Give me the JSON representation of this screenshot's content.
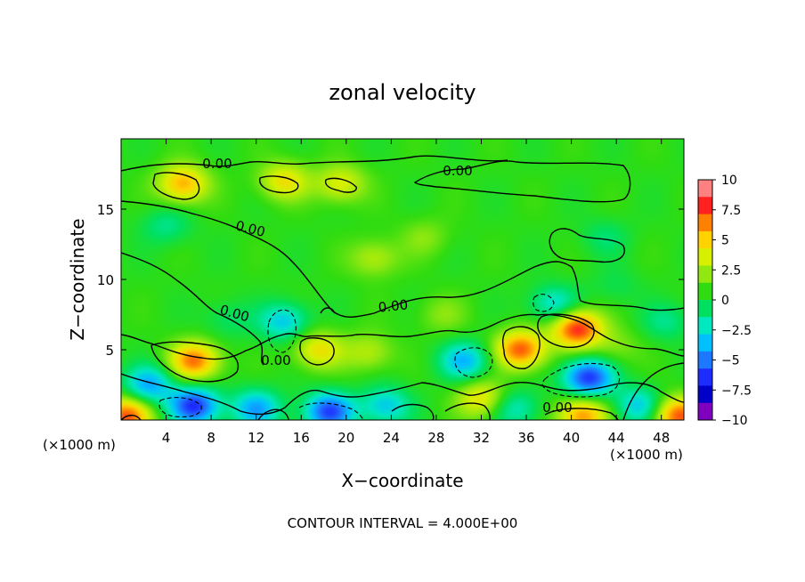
{
  "chart_data": {
    "type": "heatmap",
    "title": "zonal velocity",
    "xlabel": "X−coordinate",
    "ylabel": "Z−coordinate",
    "x_unit_left": "(×1000 m)",
    "x_unit_right": "(×1000 m)",
    "xlim": [
      0,
      50
    ],
    "ylim": [
      0,
      20
    ],
    "x_ticks": [
      4,
      8,
      12,
      16,
      20,
      24,
      28,
      32,
      36,
      40,
      44,
      48
    ],
    "y_ticks": [
      5,
      10,
      15
    ],
    "colorbar": {
      "ticks": [
        "10",
        "7.5",
        "5",
        "2.5",
        "0",
        "−2.5",
        "−5",
        "−7.5",
        "−10"
      ],
      "range": [
        -10,
        10
      ],
      "colors": [
        "#ff8080",
        "#ff2020",
        "#ff7f00",
        "#ffd200",
        "#d7f000",
        "#90e810",
        "#30dc10",
        "#00e060",
        "#00e8c0",
        "#00c0ff",
        "#1e78ff",
        "#1e2dff",
        "#0000c8",
        "#8000c0"
      ]
    },
    "contour_labels": [
      "0.00",
      "0.00",
      "0.00",
      "0.00",
      "0.00",
      "0.00",
      "0.00"
    ],
    "contour_interval_text": "CONTOUR INTERVAL = 4.000E+00",
    "features": [
      {
        "x": 5.5,
        "z": 16.8,
        "value": 5.5
      },
      {
        "x": 14.5,
        "z": 17.0,
        "value": 4.0
      },
      {
        "x": 19.5,
        "z": 16.8,
        "value": 3.5
      },
      {
        "x": 22.5,
        "z": 11.5,
        "value": 2.5
      },
      {
        "x": 27.0,
        "z": 13.0,
        "value": 1.5
      },
      {
        "x": 4.0,
        "z": 13.8,
        "value": -2.0
      },
      {
        "x": 6.5,
        "z": 4.2,
        "value": 6.5
      },
      {
        "x": 9.5,
        "z": 7.2,
        "value": -1.5
      },
      {
        "x": 14.5,
        "z": 7.0,
        "value": -4.0
      },
      {
        "x": 17.5,
        "z": 5.0,
        "value": 4.0
      },
      {
        "x": 6.5,
        "z": 1.0,
        "value": -7.5
      },
      {
        "x": 2.5,
        "z": 2.5,
        "value": -5.0
      },
      {
        "x": 18.5,
        "z": 0.6,
        "value": -7.0
      },
      {
        "x": 23.5,
        "z": 1.0,
        "value": -4.0
      },
      {
        "x": 22.0,
        "z": 4.8,
        "value": 2.5
      },
      {
        "x": 30.5,
        "z": 4.2,
        "value": -4.5
      },
      {
        "x": 32.0,
        "z": 1.5,
        "value": 4.0
      },
      {
        "x": 35.5,
        "z": 5.0,
        "value": 7.0
      },
      {
        "x": 40.5,
        "z": 6.5,
        "value": 8.0
      },
      {
        "x": 38.5,
        "z": 8.2,
        "value": -3.5
      },
      {
        "x": 41.5,
        "z": 3.0,
        "value": -7.5
      },
      {
        "x": 44.0,
        "z": 5.2,
        "value": 1.5
      },
      {
        "x": 41.0,
        "z": 0.3,
        "value": 6.0
      },
      {
        "x": 49.5,
        "z": 0.3,
        "value": 7.0
      },
      {
        "x": 46.0,
        "z": 1.0,
        "value": -4.0
      },
      {
        "x": 35.0,
        "z": 0.8,
        "value": -3.0
      },
      {
        "x": 48.5,
        "z": 7.0,
        "value": -2.0
      },
      {
        "x": 43.0,
        "z": 13.0,
        "value": -1.5
      },
      {
        "x": 0.5,
        "z": 0.3,
        "value": 7.0
      },
      {
        "x": 12.0,
        "z": 0.8,
        "value": -5.0
      },
      {
        "x": 28.5,
        "z": 7.5,
        "value": 1.5
      },
      {
        "x": 44.0,
        "z": 9.5,
        "value": -1.0
      }
    ]
  }
}
